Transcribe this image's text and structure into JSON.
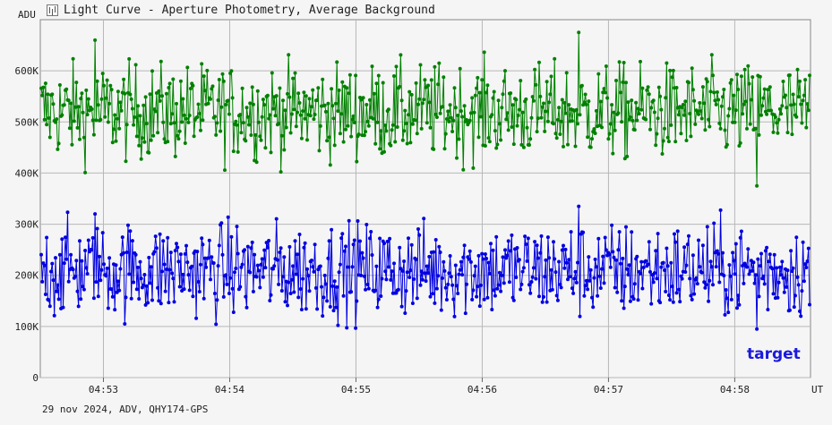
{
  "window": {
    "title": "Light Curve - Aperture Photometry, Average Background"
  },
  "footer": "29 nov 2024, ADV, QHY174-GPS",
  "colors": {
    "target": "#0000e0",
    "background": "#008000",
    "grid": "#b8b8b8"
  },
  "chart_data": {
    "type": "line",
    "ylabel": "ADU",
    "xlabel": "UT",
    "y_ticks": [
      "0",
      "100K",
      "200K",
      "300K",
      "400K",
      "500K",
      "600K"
    ],
    "x_ticks": [
      "04:53",
      "04:54",
      "04:55",
      "04:56",
      "04:57",
      "04:58"
    ],
    "ylim": [
      0,
      700000
    ],
    "xlim": [
      "04:52:30",
      "04:58:36"
    ],
    "series": [
      {
        "name": "",
        "color": "#008000",
        "mean": 520000,
        "min": 375000,
        "max": 675000,
        "spread": 45000,
        "points": 700
      },
      {
        "name": "target",
        "color": "#0000e0",
        "mean": 210000,
        "min": 95000,
        "max": 335000,
        "spread": 45000,
        "points": 700
      }
    ],
    "legend": [
      "target"
    ],
    "grid": true
  }
}
